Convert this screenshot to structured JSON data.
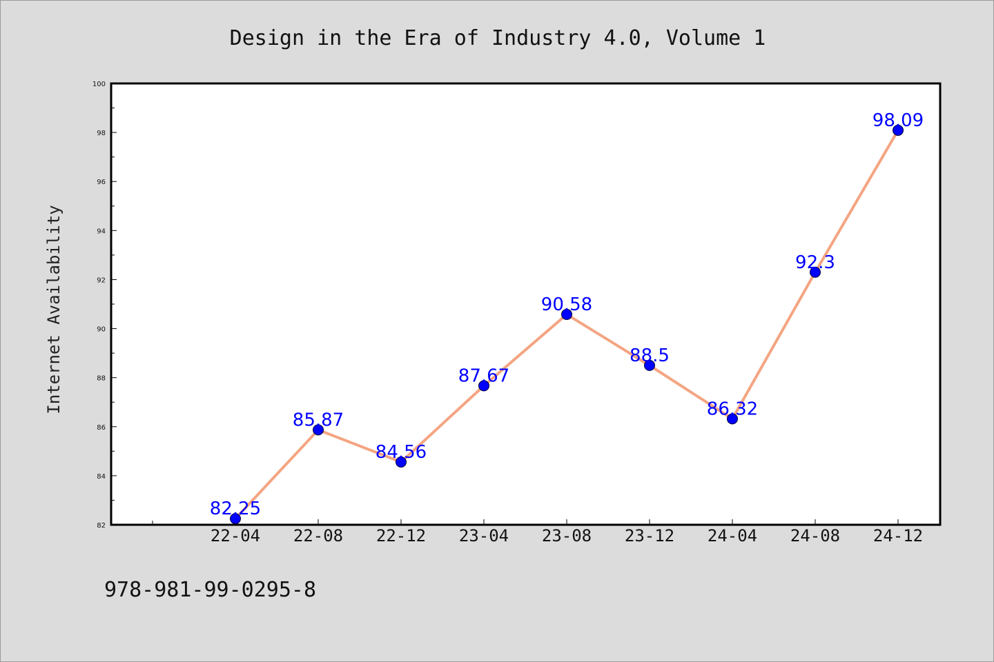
{
  "chart_data": {
    "type": "line",
    "title": "Design in the Era of Industry 4.0, Volume 1",
    "xlabel": "",
    "ylabel": "Internet Availability",
    "categories": [
      "22-04",
      "22-08",
      "22-12",
      "23-04",
      "23-08",
      "23-12",
      "24-04",
      "24-08",
      "24-12"
    ],
    "values": [
      82.25,
      85.87,
      84.56,
      87.67,
      90.58,
      88.5,
      86.32,
      92.3,
      98.09
    ],
    "data_labels": [
      "82.25",
      "85.87",
      "84.56",
      "87.67",
      "90.58",
      "88.5",
      "86.32",
      "92.3",
      "98.09"
    ],
    "ylim": [
      82,
      100
    ],
    "yticks": [
      82,
      84,
      86,
      88,
      90,
      92,
      94,
      96,
      98,
      100
    ],
    "ytick_labels": [
      "82",
      "84",
      "86",
      "88",
      "90",
      "92",
      "94",
      "96",
      "98",
      "100"
    ],
    "grid": false,
    "legend": "none",
    "line_color": "#f4a582",
    "marker_color": "#0000ff",
    "label_color": "#0000ff",
    "background_color": "#dcdcdc",
    "plot_background_color": "#ffffff"
  },
  "footer": {
    "isbn": "978-981-99-0295-8"
  }
}
